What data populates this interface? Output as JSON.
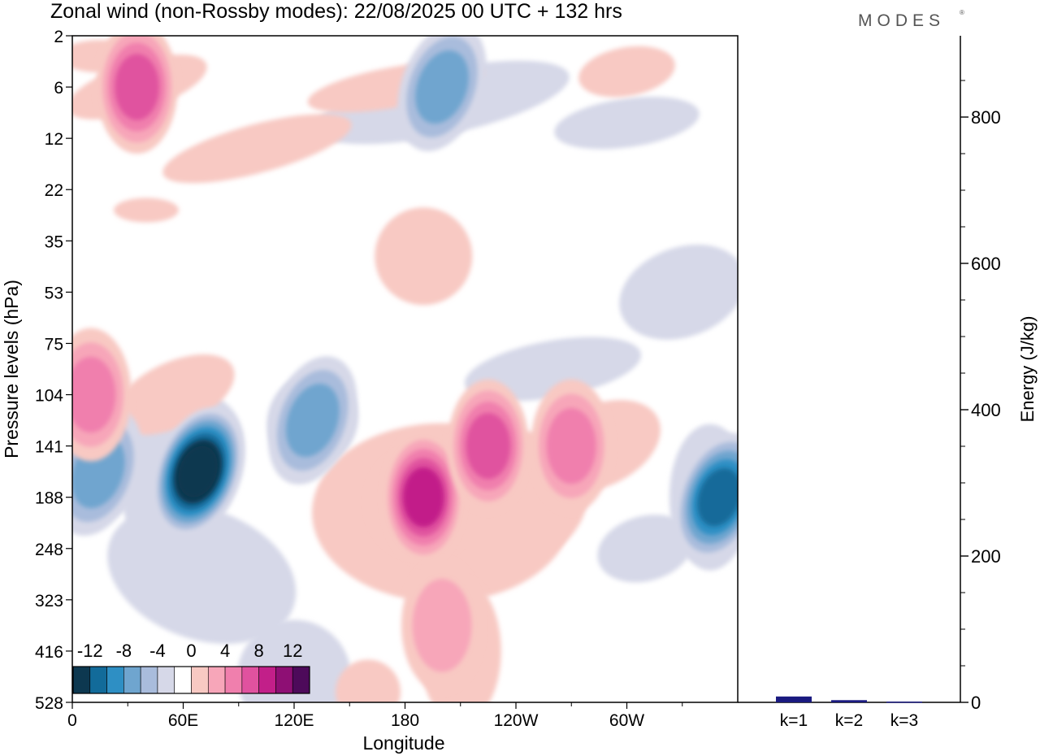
{
  "title": "Zonal wind (non-Rossby modes):  22/08/2025  00 UTC  + 132 hrs",
  "brand": "MODES",
  "brand_mark": "®",
  "chart_data": [
    {
      "type": "heatmap",
      "title": "Zonal wind (non-Rossby modes):  22/08/2025  00 UTC  + 132 hrs",
      "xlabel": "Longitude",
      "ylabel": "Pressure levels (hPa)",
      "x_ticks": [
        "0",
        "60E",
        "120E",
        "180",
        "120W",
        "60W"
      ],
      "x_tick_degrees": [
        0,
        60,
        120,
        180,
        240,
        300
      ],
      "x_range_degrees": [
        0,
        360
      ],
      "y_ticks": [
        "2",
        "6",
        "12",
        "22",
        "35",
        "53",
        "75",
        "104",
        "141",
        "188",
        "248",
        "323",
        "416",
        "528"
      ],
      "colorbar": {
        "tick_labels": [
          "-12",
          "-8",
          "-4",
          "0",
          "4",
          "8",
          "12"
        ],
        "levels": [
          -14,
          -12,
          -10,
          -8,
          -6,
          -4,
          -2,
          2,
          4,
          6,
          8,
          10,
          12,
          14
        ],
        "colors": [
          "#0d3850",
          "#126b9a",
          "#2e8fc4",
          "#6fa5cf",
          "#a9bcdc",
          "#d6d8e8",
          "#ffffff",
          "#f8c9c3",
          "#f7a6b9",
          "#f07fad",
          "#e0529f",
          "#c21f89",
          "#8e0f74",
          "#4d0a5a"
        ]
      },
      "features": [
        {
          "sign": "neg",
          "value": -14,
          "lon": 68,
          "level": "141-188",
          "note": "strongest easterly core"
        },
        {
          "sign": "neg",
          "value": -10,
          "lon": 350,
          "level": "188",
          "note": "easterly core"
        },
        {
          "sign": "neg",
          "value": -6,
          "lon": 14,
          "level": "141-188"
        },
        {
          "sign": "neg",
          "value": -6,
          "lon": 130,
          "level": "104-141"
        },
        {
          "sign": "pos",
          "value": 10,
          "lon": 190,
          "level": "188",
          "note": "westerly core"
        },
        {
          "sign": "pos",
          "value": 8,
          "lon": 225,
          "level": "141"
        },
        {
          "sign": "pos",
          "value": 8,
          "lon": 35,
          "level": "6",
          "note": "upper-level maximum"
        },
        {
          "sign": "pos",
          "value": 6,
          "lon": 270,
          "level": "141"
        },
        {
          "sign": "pos",
          "value": 6,
          "lon": 10,
          "level": "104"
        },
        {
          "sign": "neg",
          "value": -6,
          "lon": 200,
          "level": "2-12",
          "note": "upper easterly band"
        },
        {
          "sign": "pos",
          "value": 4,
          "lon": 200,
          "level": "323-416"
        }
      ]
    },
    {
      "type": "bar",
      "ylabel": "Energy (J/kg)",
      "categories": [
        "k=1",
        "k=2",
        "k=3"
      ],
      "values": [
        8,
        3,
        1
      ],
      "ylim": [
        0,
        900
      ],
      "y_ticks": [
        0,
        200,
        400,
        600,
        800
      ],
      "bar_color": "#1a1a80"
    }
  ]
}
